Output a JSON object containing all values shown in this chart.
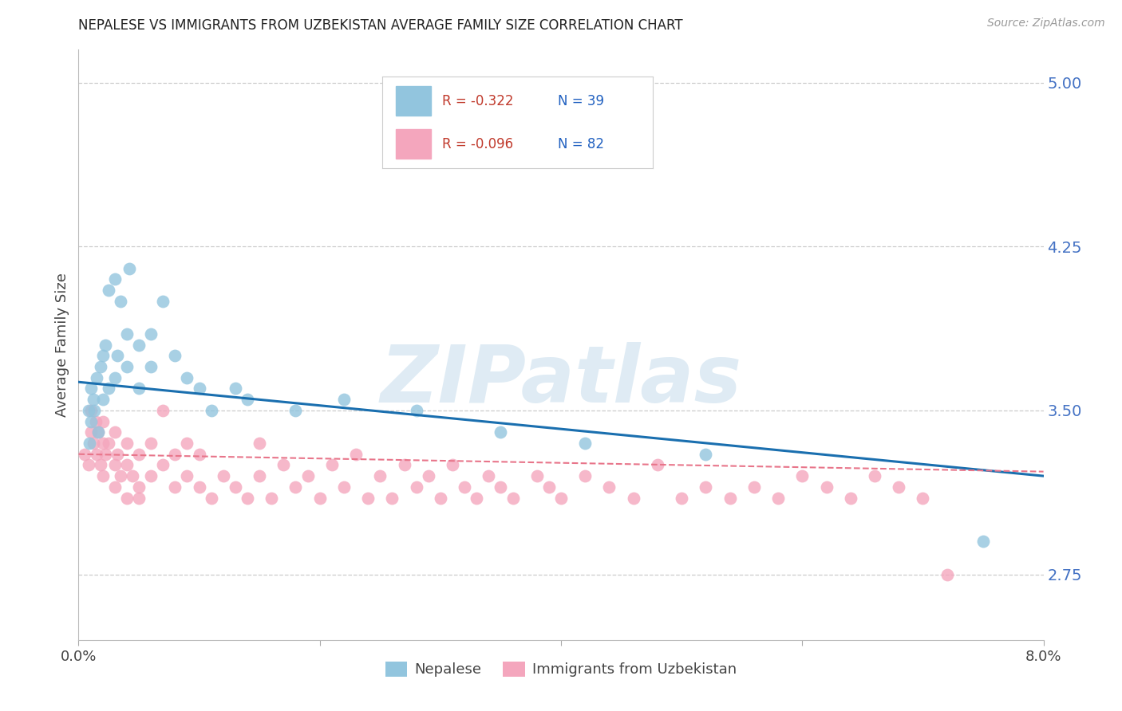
{
  "title": "NEPALESE VS IMMIGRANTS FROM UZBEKISTAN AVERAGE FAMILY SIZE CORRELATION CHART",
  "source": "Source: ZipAtlas.com",
  "ylabel": "Average Family Size",
  "right_yticks": [
    2.75,
    3.5,
    4.25,
    5.0
  ],
  "xlim": [
    0.0,
    0.08
  ],
  "ylim": [
    2.45,
    5.15
  ],
  "watermark": "ZIPatlas",
  "legend_blue_r": "-0.322",
  "legend_blue_n": "39",
  "legend_pink_r": "-0.096",
  "legend_pink_n": "82",
  "blue_color": "#92c5de",
  "pink_color": "#f4a6bd",
  "trendline_blue": "#1a6faf",
  "trendline_pink": "#e8758a",
  "nepalese_label": "Nepalese",
  "uzbekistan_label": "Immigrants from Uzbekistan",
  "nepalese_x": [
    0.0008,
    0.0009,
    0.001,
    0.001,
    0.0012,
    0.0013,
    0.0015,
    0.0016,
    0.0018,
    0.002,
    0.002,
    0.0022,
    0.0025,
    0.0025,
    0.003,
    0.003,
    0.0032,
    0.0035,
    0.004,
    0.004,
    0.0042,
    0.005,
    0.005,
    0.006,
    0.006,
    0.007,
    0.008,
    0.009,
    0.01,
    0.011,
    0.013,
    0.014,
    0.018,
    0.022,
    0.028,
    0.035,
    0.042,
    0.052,
    0.075
  ],
  "nepalese_y": [
    3.5,
    3.35,
    3.6,
    3.45,
    3.55,
    3.5,
    3.65,
    3.4,
    3.7,
    3.55,
    3.75,
    3.8,
    3.6,
    4.05,
    3.65,
    4.1,
    3.75,
    4.0,
    3.7,
    3.85,
    4.15,
    3.6,
    3.8,
    3.7,
    3.85,
    4.0,
    3.75,
    3.65,
    3.6,
    3.5,
    3.6,
    3.55,
    3.5,
    3.55,
    3.5,
    3.4,
    3.35,
    3.3,
    2.9
  ],
  "uzbekistan_x": [
    0.0005,
    0.0008,
    0.001,
    0.001,
    0.0012,
    0.0014,
    0.0015,
    0.0016,
    0.0018,
    0.002,
    0.002,
    0.002,
    0.0022,
    0.0025,
    0.003,
    0.003,
    0.003,
    0.0032,
    0.0035,
    0.004,
    0.004,
    0.004,
    0.0045,
    0.005,
    0.005,
    0.005,
    0.006,
    0.006,
    0.007,
    0.007,
    0.008,
    0.008,
    0.009,
    0.009,
    0.01,
    0.01,
    0.011,
    0.012,
    0.013,
    0.014,
    0.015,
    0.015,
    0.016,
    0.017,
    0.018,
    0.019,
    0.02,
    0.021,
    0.022,
    0.023,
    0.024,
    0.025,
    0.026,
    0.027,
    0.028,
    0.029,
    0.03,
    0.031,
    0.032,
    0.033,
    0.034,
    0.035,
    0.036,
    0.038,
    0.039,
    0.04,
    0.042,
    0.044,
    0.046,
    0.048,
    0.05,
    0.052,
    0.054,
    0.056,
    0.058,
    0.06,
    0.062,
    0.064,
    0.066,
    0.068,
    0.07,
    0.072
  ],
  "uzbekistan_y": [
    3.3,
    3.25,
    3.4,
    3.5,
    3.35,
    3.45,
    3.3,
    3.4,
    3.25,
    3.35,
    3.2,
    3.45,
    3.3,
    3.35,
    3.15,
    3.25,
    3.4,
    3.3,
    3.2,
    3.1,
    3.25,
    3.35,
    3.2,
    3.15,
    3.3,
    3.1,
    3.2,
    3.35,
    3.25,
    3.5,
    3.15,
    3.3,
    3.2,
    3.35,
    3.15,
    3.3,
    3.1,
    3.2,
    3.15,
    3.1,
    3.2,
    3.35,
    3.1,
    3.25,
    3.15,
    3.2,
    3.1,
    3.25,
    3.15,
    3.3,
    3.1,
    3.2,
    3.1,
    3.25,
    3.15,
    3.2,
    3.1,
    3.25,
    3.15,
    3.1,
    3.2,
    3.15,
    3.1,
    3.2,
    3.15,
    3.1,
    3.2,
    3.15,
    3.1,
    3.25,
    3.1,
    3.15,
    3.1,
    3.15,
    3.1,
    3.2,
    3.15,
    3.1,
    3.2,
    3.15,
    3.1,
    2.75
  ]
}
